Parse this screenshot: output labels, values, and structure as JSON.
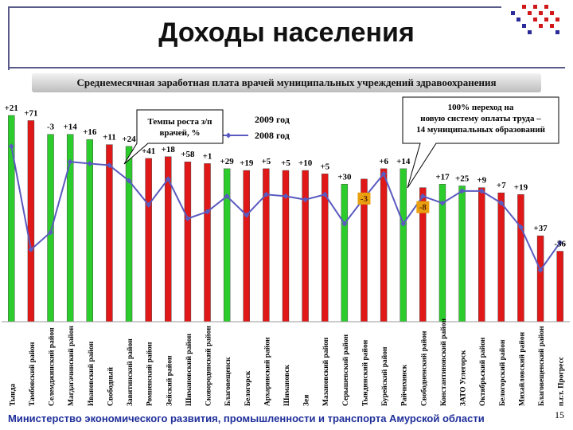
{
  "page": {
    "title": "Доходы населения",
    "subtitle": "Среднемесячная заработная плата врачей муниципальных учреждений здравоохранения",
    "footer": "Министерство экономического развития, промышленности и транспорта Амурской области",
    "page_number": "15"
  },
  "chart_data": {
    "type": "bar",
    "categories": [
      "Тында",
      "Тамбовский район",
      "Селемджинский район",
      "Магдагачинский район",
      "Ивановский район",
      "Свободный",
      "Завитинский район",
      "Ромненский район",
      "Зейский район",
      "Шимановский район",
      "Сковородинский район",
      "Благовещенск",
      "Белогорск",
      "Архаринский район",
      "Шимановск",
      "Зея",
      "Мазановский район",
      "Серышевский район",
      "Тындинский район",
      "Бурейский район",
      "Райчихинск",
      "Свободненский район",
      "Константиновский район",
      "ЗАТО Углегорск",
      "Октябрьский район",
      "Белогорский район",
      "Михайловский район",
      "Благовещенский район",
      "п.г.т. Прогресс"
    ],
    "series": [
      {
        "name": "2009 год",
        "type": "bar",
        "values": [
          12.0,
          11.7,
          10.9,
          10.9,
          10.6,
          10.3,
          10.2,
          9.5,
          9.6,
          9.3,
          9.2,
          8.9,
          8.8,
          8.9,
          8.8,
          8.8,
          8.6,
          8.0,
          8.3,
          8.9,
          8.9,
          7.8,
          8.0,
          7.9,
          7.8,
          7.5,
          7.4,
          5.0,
          4.1
        ],
        "colors": [
          "green",
          "red",
          "green",
          "green",
          "green",
          "red",
          "green",
          "red",
          "red",
          "red",
          "red",
          "green",
          "red",
          "red",
          "red",
          "red",
          "red",
          "green",
          "red",
          "red",
          "green",
          "red",
          "green",
          "green",
          "red",
          "red",
          "red",
          "red",
          "red"
        ]
      },
      {
        "name": "2008 год",
        "type": "line",
        "values": [
          10.2,
          4.2,
          5.2,
          9.3,
          9.2,
          9.1,
          8.2,
          6.8,
          8.3,
          6.0,
          6.4,
          7.3,
          6.2,
          7.4,
          7.3,
          7.1,
          7.4,
          5.7,
          7.2,
          8.6,
          5.7,
          7.3,
          6.9,
          7.6,
          7.6,
          6.9,
          5.5,
          3.0,
          4.6
        ]
      }
    ],
    "value_labels": [
      "+21",
      "+71",
      "-3",
      "+14",
      "+16",
      "+11",
      "+24",
      "+41",
      "+18",
      "+58",
      "+1",
      "+29",
      "+19",
      "+5",
      "+5",
      "+10",
      "+5",
      "+30",
      "-3",
      "+6",
      "+14",
      "-8",
      "+17",
      "+25",
      "+9",
      "+7",
      "+19",
      "+37",
      "-36"
    ],
    "negative_labels": [
      false,
      false,
      false,
      false,
      false,
      false,
      false,
      false,
      false,
      false,
      false,
      false,
      false,
      false,
      false,
      false,
      false,
      false,
      true,
      false,
      false,
      true,
      false,
      false,
      false,
      false,
      false,
      false,
      false
    ],
    "ylim": [
      0,
      12.6
    ],
    "legend": {
      "position": "top-center",
      "items": [
        "2009 год",
        "2008 год"
      ]
    },
    "annotations": [
      {
        "text": "Темпы роста з/п врачей, %"
      },
      {
        "text": "100% переход на новую систему оплаты труда – 14 муниципальных образований"
      }
    ],
    "grid": false,
    "colors": {
      "red": "#e01818",
      "green": "#2ccc2c",
      "line": "#5a5ac0",
      "label_neg_bg": "#e8a010"
    }
  }
}
